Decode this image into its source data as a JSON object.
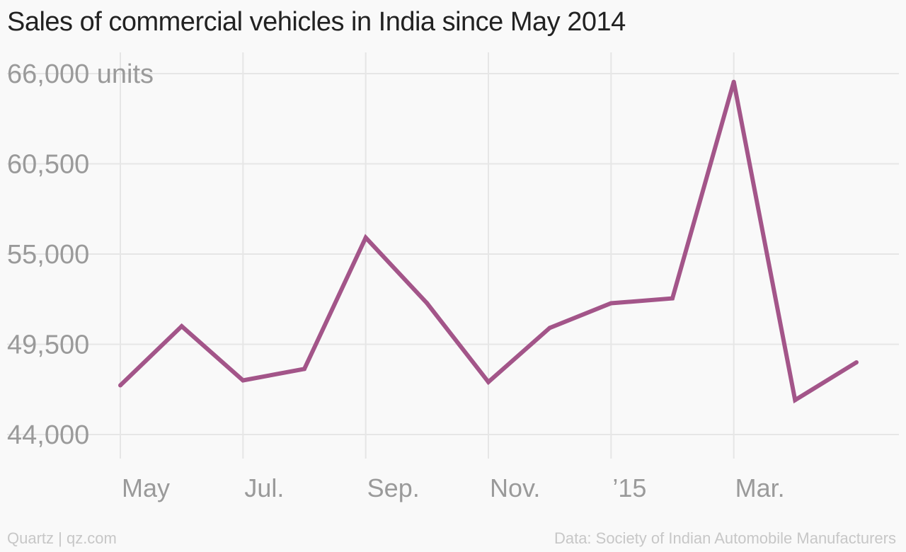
{
  "chart_data": {
    "type": "line",
    "title": "Sales of commercial vehicles in India since May 2014",
    "xlabel": "",
    "ylabel": "",
    "y_unit_label": "units",
    "x": [
      "2014-05",
      "2014-06",
      "2014-07",
      "2014-08",
      "2014-09",
      "2014-10",
      "2014-11",
      "2014-12",
      "2015-01",
      "2015-02",
      "2015-03",
      "2015-04",
      "2015-05"
    ],
    "x_tick_labels": [
      "May",
      "Jul.",
      "Sep.",
      "Nov.",
      "’15",
      "Mar."
    ],
    "x_tick_indices": [
      0,
      2,
      4,
      6,
      8,
      10
    ],
    "y_ticks": [
      44000,
      49500,
      55000,
      60500,
      66000
    ],
    "y_tick_labels": [
      "44,000",
      "49,500",
      "55,000",
      "60,500",
      "66,000 units"
    ],
    "ylim": [
      44000,
      66000
    ],
    "grid": true,
    "series": [
      {
        "color": "#a35589",
        "values": [
          47000,
          50600,
          47300,
          48000,
          56000,
          52000,
          47200,
          50500,
          52000,
          52300,
          65500,
          46100,
          48400
        ]
      }
    ]
  },
  "footer": {
    "source_left": "Quartz | qz.com",
    "source_right": "Data: Society of Indian Automobile Manufacturers"
  },
  "colors": {
    "background": "#f9f9f9",
    "grid": "#e6e6e6",
    "line": "#a35589",
    "tick_text": "#9a9a9a",
    "title_text": "#222222",
    "footer_text": "#c7c7c7"
  }
}
